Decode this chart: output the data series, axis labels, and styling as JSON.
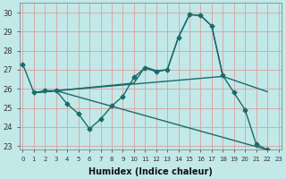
{
  "bg_color": "#c2e8e8",
  "grid_color": "#dda0a0",
  "line_color": "#1a6b6b",
  "marker": "D",
  "markersize": 2.5,
  "linewidth": 1.0,
  "xlabel": "Humidex (Indice chaleur)",
  "ylim": [
    22.8,
    30.5
  ],
  "xlim": [
    -0.3,
    23.3
  ],
  "yticks": [
    23,
    24,
    25,
    26,
    27,
    28,
    29,
    30
  ],
  "xticks": [
    0,
    1,
    2,
    3,
    4,
    5,
    6,
    7,
    8,
    9,
    10,
    11,
    12,
    13,
    14,
    15,
    16,
    17,
    18,
    19,
    20,
    21,
    22,
    23
  ],
  "series_with_markers": {
    "x": [
      0,
      1,
      2,
      3,
      4,
      5,
      6,
      7,
      8,
      9,
      10,
      11,
      12,
      13,
      14,
      15,
      16,
      17,
      18,
      19,
      20,
      21,
      22
    ],
    "y": [
      27.3,
      25.8,
      25.9,
      25.9,
      25.2,
      24.7,
      23.9,
      24.4,
      25.1,
      25.6,
      26.6,
      27.1,
      26.9,
      27.0,
      28.7,
      29.9,
      29.85,
      29.3,
      26.7,
      25.8,
      24.9,
      23.1,
      22.8
    ]
  },
  "line_flat": {
    "x": [
      1,
      2,
      3,
      18,
      22
    ],
    "y": [
      25.8,
      25.85,
      25.9,
      26.65,
      25.85
    ]
  },
  "line_rise": {
    "x": [
      1,
      2,
      3,
      10,
      11,
      12,
      13,
      14,
      15,
      16,
      17,
      18
    ],
    "y": [
      25.8,
      25.85,
      25.9,
      26.3,
      27.15,
      26.95,
      27.0,
      28.7,
      29.9,
      29.85,
      29.3,
      26.65
    ]
  },
  "line_diagonal": {
    "x": [
      1,
      2,
      3,
      22
    ],
    "y": [
      25.8,
      25.85,
      25.9,
      22.8
    ]
  }
}
